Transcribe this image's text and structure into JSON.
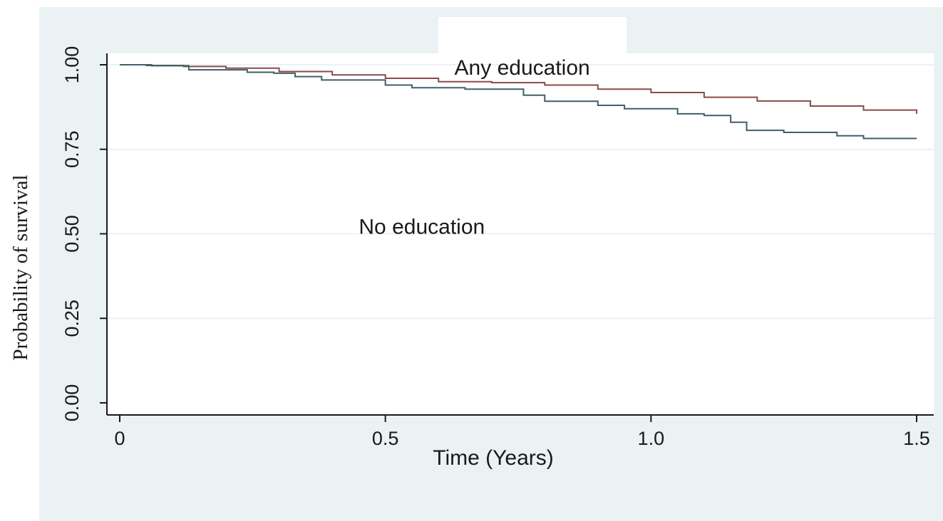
{
  "colors": {
    "background": "#eaf2f3",
    "plot_area": "#ffffff",
    "gridline": "#eaf2f3",
    "axis": "#1a1a1a",
    "any_education_line": "#8b4a4a",
    "no_education_line": "#3f6068"
  },
  "chart_data": {
    "type": "line",
    "step": true,
    "title": "",
    "xlabel": "Time (Years)",
    "ylabel": "Probability of survival",
    "xlim": [
      0,
      1.5
    ],
    "ylim": [
      0,
      1
    ],
    "xticks": [
      0,
      0.5,
      1.0,
      1.5
    ],
    "xtick_labels": [
      "0",
      "0.5",
      "1.0",
      "1.5"
    ],
    "yticks": [
      0,
      0.25,
      0.5,
      0.75,
      1.0
    ],
    "ytick_labels": [
      "0.00",
      "0.25",
      "0.50",
      "0.75",
      "1.00"
    ],
    "grid": "horizontal",
    "legend": "none",
    "annotations": [
      {
        "text": "Any education",
        "x": 0.63,
        "y": 1.0
      },
      {
        "text": "No education",
        "x": 0.45,
        "y": 0.53
      }
    ],
    "series": [
      {
        "name": "Any education",
        "x": [
          0,
          0.05,
          0.12,
          0.2,
          0.3,
          0.4,
          0.5,
          0.6,
          0.7,
          0.8,
          0.9,
          1.0,
          1.1,
          1.2,
          1.3,
          1.4,
          1.5
        ],
        "y": [
          1.0,
          0.998,
          0.995,
          0.99,
          0.98,
          0.97,
          0.96,
          0.95,
          0.947,
          0.94,
          0.928,
          0.918,
          0.904,
          0.893,
          0.878,
          0.866,
          0.855
        ]
      },
      {
        "name": "No education",
        "x": [
          0,
          0.06,
          0.13,
          0.24,
          0.29,
          0.33,
          0.38,
          0.5,
          0.55,
          0.65,
          0.76,
          0.8,
          0.9,
          0.95,
          1.05,
          1.1,
          1.15,
          1.18,
          1.25,
          1.35,
          1.4,
          1.5
        ],
        "y": [
          1.0,
          0.997,
          0.985,
          0.978,
          0.975,
          0.965,
          0.955,
          0.94,
          0.932,
          0.928,
          0.91,
          0.892,
          0.88,
          0.87,
          0.855,
          0.85,
          0.83,
          0.806,
          0.8,
          0.79,
          0.782,
          0.782
        ]
      }
    ]
  }
}
